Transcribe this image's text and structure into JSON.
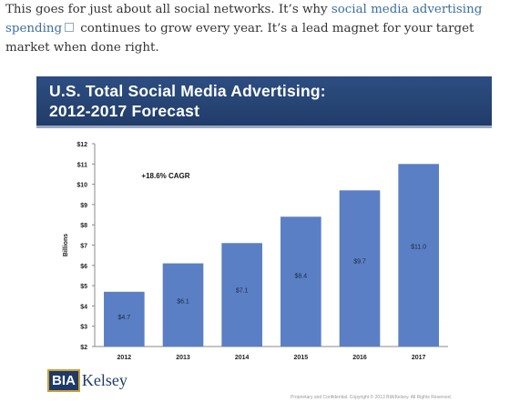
{
  "intro": {
    "text_before": "This goes for just about all social networks. It’s why ",
    "link_text": "social media advertising spending",
    "text_after": " continues to grow every year. It’s a lead magnet for your target market when done right."
  },
  "banner": {
    "line1": "U.S. Total Social Media Advertising:",
    "line2": "2012-2017 Forecast"
  },
  "logo": {
    "mark": "BIA",
    "name": "Kelsey"
  },
  "footer_note": "Proprietary and Confidential. Copyright © 2013 BIA/Kelsey. All Rights Reserved.",
  "colors": {
    "bar": "#5a7fc4",
    "banner": "#2a4878",
    "link": "#3c6e9f"
  },
  "chart_data": {
    "type": "bar",
    "title": "U.S. Total Social Media Advertising: 2012-2017 Forecast",
    "categories": [
      "2012",
      "2013",
      "2014",
      "2015",
      "2016",
      "2017"
    ],
    "values": [
      4.7,
      6.1,
      7.1,
      8.4,
      9.7,
      11.0
    ],
    "data_labels": [
      "$4.7",
      "$6.1",
      "$7.1",
      "$8.4",
      "$9.7",
      "$11.0"
    ],
    "ylabel": "Billions",
    "ylim": [
      2,
      12
    ],
    "yticks": [
      "$2",
      "$3",
      "$4",
      "$5",
      "$6",
      "$7",
      "$8",
      "$9",
      "$10",
      "$11",
      "$12"
    ],
    "annotation": "+18.6% CAGR",
    "grid": false,
    "legend": "none"
  }
}
